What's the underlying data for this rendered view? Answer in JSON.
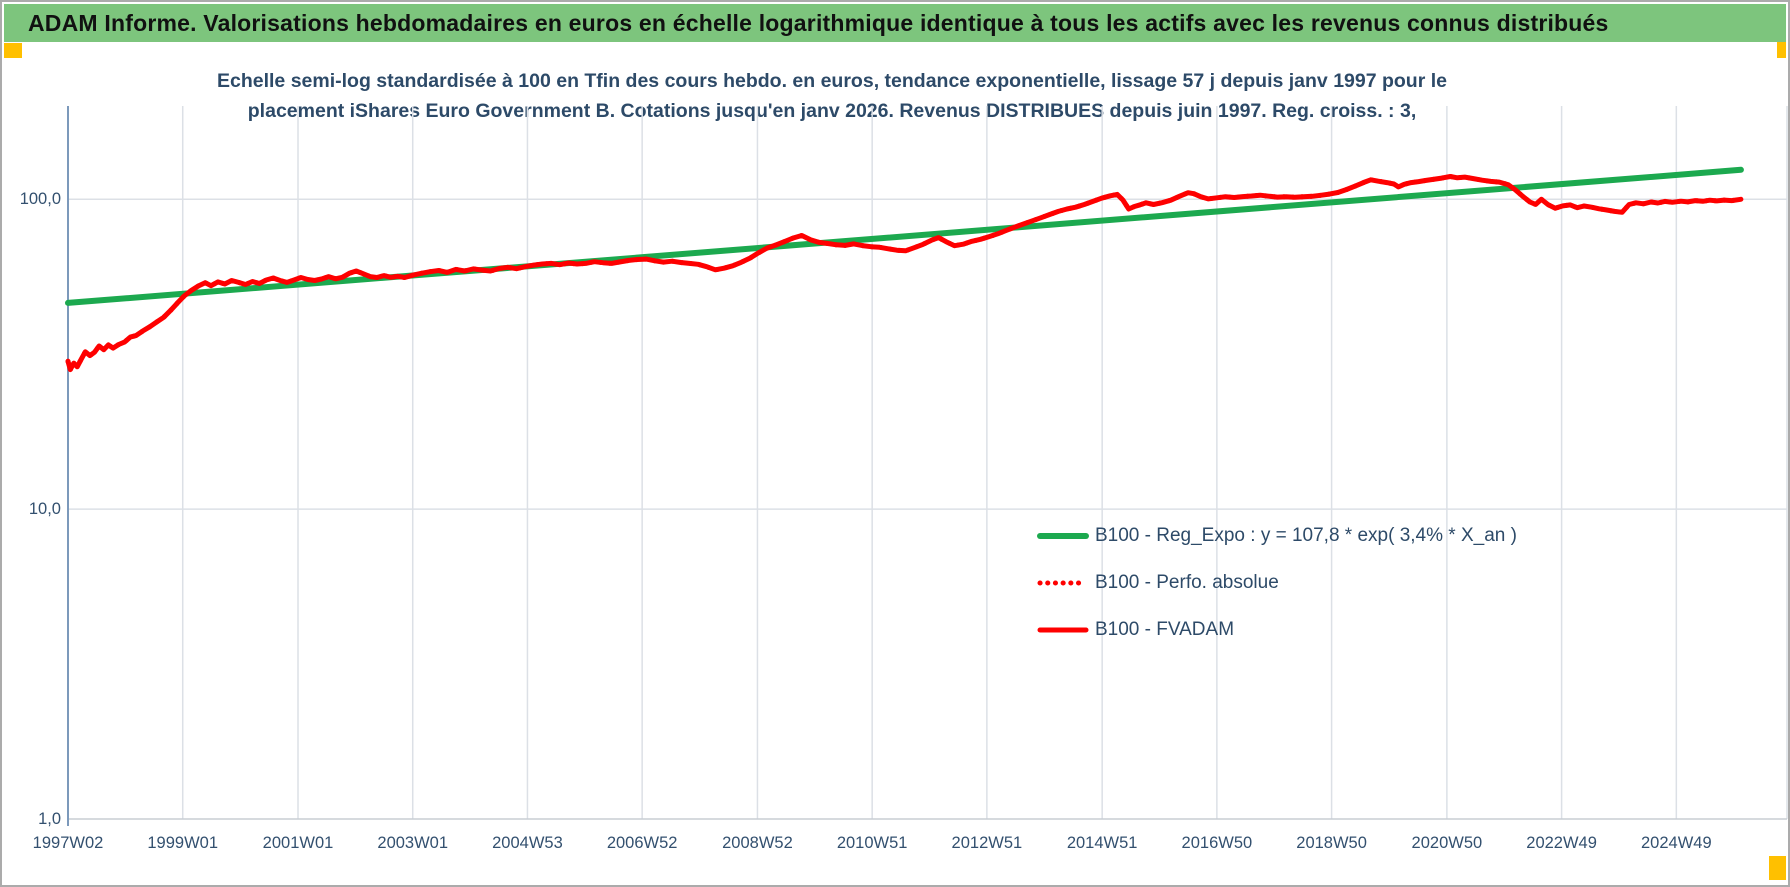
{
  "window": {
    "border_color": "#ababab",
    "background": "#ffffff"
  },
  "header": {
    "title": "ADAM Informe. Valorisations hebdomadaires en euros en échelle logarithmique identique à tous les actifs avec les revenus connus distribués",
    "background": "#7dc57d",
    "text_color": "#111111",
    "marker_color": "#ffc000"
  },
  "chart": {
    "title_line1": "Echelle semi-log standardisée à 100 en Tfin des cours hebdo. en euros, tendance exponentielle, lissage 57 j depuis janv 1997 pour le",
    "title_line2": "placement iShares Euro Government B. Cotations jusqu'en janv 2026. Revenus DISTRIBUES depuis juin 1997. Reg. croiss. : 3,",
    "title_color": "#2d4a68",
    "axis_label_color": "#33506f",
    "gridline_color": "#dce0e6",
    "axis_line_color": "#7c99bb",
    "baseline_color": "#c8cdd4"
  },
  "chart_data": {
    "type": "line",
    "y_scale": "log",
    "ylim": [
      1,
      200
    ],
    "x_range_years": [
      1997.02,
      2026.84
    ],
    "grid": true,
    "legend_position": "inside-right",
    "y_ticks": [
      {
        "value": 100,
        "label": "100,0"
      },
      {
        "value": 10,
        "label": "10,0"
      },
      {
        "value": 1,
        "label": "1,0"
      }
    ],
    "x_ticks": [
      {
        "year": 1997.02,
        "label": "1997W02"
      },
      {
        "year": 1999.01,
        "label": "1999W01"
      },
      {
        "year": 2001.01,
        "label": "2001W01"
      },
      {
        "year": 2003.0,
        "label": "2003W01"
      },
      {
        "year": 2004.99,
        "label": "2004W53"
      },
      {
        "year": 2006.98,
        "label": "2006W52"
      },
      {
        "year": 2008.98,
        "label": "2008W52"
      },
      {
        "year": 2010.97,
        "label": "2010W51"
      },
      {
        "year": 2012.96,
        "label": "2012W51"
      },
      {
        "year": 2014.96,
        "label": "2014W51"
      },
      {
        "year": 2016.95,
        "label": "2016W50"
      },
      {
        "year": 2018.94,
        "label": "2018W50"
      },
      {
        "year": 2020.94,
        "label": "2020W50"
      },
      {
        "year": 2022.93,
        "label": "2022W49"
      },
      {
        "year": 2024.92,
        "label": "2024W49"
      }
    ],
    "series": [
      {
        "name": "B100 - Reg_Expo : y = 107,8 * exp( 3,4% *  X_an )",
        "color": "#1ca94f",
        "style": "solid",
        "width": 6,
        "points": [
          [
            1997.02,
            46.3
          ],
          [
            2026.04,
            124.5
          ]
        ]
      },
      {
        "name": "B100 - Perfo. absolue",
        "color": "#fe0000",
        "style": "dotted",
        "width": 5,
        "points_same_as": "B100 - FVADAM"
      },
      {
        "name": "B100 - FVADAM",
        "color": "#fe0000",
        "style": "solid",
        "width": 5,
        "points": [
          [
            1997.02,
            30.0
          ],
          [
            1997.06,
            28.2
          ],
          [
            1997.12,
            29.6
          ],
          [
            1997.18,
            28.8
          ],
          [
            1997.25,
            30.5
          ],
          [
            1997.32,
            32.2
          ],
          [
            1997.4,
            31.3
          ],
          [
            1997.48,
            32.1
          ],
          [
            1997.56,
            33.6
          ],
          [
            1997.64,
            32.7
          ],
          [
            1997.72,
            33.9
          ],
          [
            1997.8,
            33.1
          ],
          [
            1997.9,
            34.0
          ],
          [
            1998.0,
            34.6
          ],
          [
            1998.1,
            35.9
          ],
          [
            1998.2,
            36.3
          ],
          [
            1998.32,
            37.6
          ],
          [
            1998.44,
            38.8
          ],
          [
            1998.56,
            40.2
          ],
          [
            1998.68,
            41.6
          ],
          [
            1998.8,
            43.8
          ],
          [
            1998.92,
            46.3
          ],
          [
            1999.04,
            48.8
          ],
          [
            1999.16,
            50.8
          ],
          [
            1999.28,
            52.5
          ],
          [
            1999.4,
            53.8
          ],
          [
            1999.5,
            52.6
          ],
          [
            1999.62,
            54.1
          ],
          [
            1999.74,
            53.3
          ],
          [
            1999.86,
            54.7
          ],
          [
            1999.98,
            53.9
          ],
          [
            2000.1,
            53.1
          ],
          [
            2000.22,
            54.3
          ],
          [
            2000.34,
            53.5
          ],
          [
            2000.46,
            54.9
          ],
          [
            2000.58,
            55.7
          ],
          [
            2000.7,
            54.7
          ],
          [
            2000.82,
            53.9
          ],
          [
            2000.94,
            54.9
          ],
          [
            2001.06,
            55.9
          ],
          [
            2001.18,
            55.1
          ],
          [
            2001.3,
            54.7
          ],
          [
            2001.42,
            55.3
          ],
          [
            2001.54,
            56.3
          ],
          [
            2001.66,
            55.4
          ],
          [
            2001.78,
            56.0
          ],
          [
            2001.9,
            57.7
          ],
          [
            2002.02,
            58.7
          ],
          [
            2002.14,
            57.5
          ],
          [
            2002.26,
            56.3
          ],
          [
            2002.38,
            55.9
          ],
          [
            2002.5,
            56.7
          ],
          [
            2002.62,
            56.0
          ],
          [
            2002.74,
            56.4
          ],
          [
            2002.86,
            55.9
          ],
          [
            2003.0,
            56.9
          ],
          [
            2003.15,
            57.7
          ],
          [
            2003.3,
            58.4
          ],
          [
            2003.45,
            58.9
          ],
          [
            2003.6,
            58.1
          ],
          [
            2003.75,
            59.4
          ],
          [
            2003.9,
            58.7
          ],
          [
            2004.05,
            59.6
          ],
          [
            2004.2,
            59.1
          ],
          [
            2004.35,
            58.7
          ],
          [
            2004.5,
            59.8
          ],
          [
            2004.65,
            60.3
          ],
          [
            2004.8,
            59.7
          ],
          [
            2004.95,
            60.6
          ],
          [
            2005.1,
            61.3
          ],
          [
            2005.25,
            61.8
          ],
          [
            2005.4,
            62.1
          ],
          [
            2005.55,
            61.5
          ],
          [
            2005.7,
            62.3
          ],
          [
            2005.85,
            61.8
          ],
          [
            2006.0,
            62.1
          ],
          [
            2006.15,
            62.9
          ],
          [
            2006.3,
            62.4
          ],
          [
            2006.45,
            62.1
          ],
          [
            2006.6,
            62.8
          ],
          [
            2006.75,
            63.5
          ],
          [
            2006.9,
            63.9
          ],
          [
            2007.05,
            64.1
          ],
          [
            2007.2,
            63.3
          ],
          [
            2007.35,
            62.7
          ],
          [
            2007.5,
            63.1
          ],
          [
            2007.65,
            62.5
          ],
          [
            2007.8,
            62.1
          ],
          [
            2007.95,
            61.7
          ],
          [
            2008.1,
            60.6
          ],
          [
            2008.25,
            59.2
          ],
          [
            2008.4,
            59.9
          ],
          [
            2008.55,
            61.0
          ],
          [
            2008.7,
            62.6
          ],
          [
            2008.85,
            64.6
          ],
          [
            2009.0,
            67.2
          ],
          [
            2009.15,
            69.6
          ],
          [
            2009.3,
            71.2
          ],
          [
            2009.45,
            73.0
          ],
          [
            2009.6,
            75.0
          ],
          [
            2009.75,
            76.4
          ],
          [
            2009.9,
            74.0
          ],
          [
            2010.05,
            72.6
          ],
          [
            2010.2,
            72.0
          ],
          [
            2010.35,
            71.3
          ],
          [
            2010.5,
            71.0
          ],
          [
            2010.65,
            71.8
          ],
          [
            2010.8,
            70.9
          ],
          [
            2010.95,
            70.3
          ],
          [
            2011.1,
            70.0
          ],
          [
            2011.25,
            69.2
          ],
          [
            2011.4,
            68.5
          ],
          [
            2011.55,
            68.2
          ],
          [
            2011.7,
            69.8
          ],
          [
            2011.85,
            71.5
          ],
          [
            2012.0,
            73.8
          ],
          [
            2012.12,
            75.2
          ],
          [
            2012.25,
            73.0
          ],
          [
            2012.4,
            70.8
          ],
          [
            2012.55,
            71.6
          ],
          [
            2012.7,
            73.2
          ],
          [
            2012.85,
            74.3
          ],
          [
            2013.0,
            75.8
          ],
          [
            2013.15,
            77.4
          ],
          [
            2013.3,
            79.4
          ],
          [
            2013.45,
            81.4
          ],
          [
            2013.6,
            83.3
          ],
          [
            2013.75,
            85.2
          ],
          [
            2013.9,
            87.2
          ],
          [
            2014.05,
            89.3
          ],
          [
            2014.2,
            91.4
          ],
          [
            2014.35,
            93.0
          ],
          [
            2014.5,
            94.3
          ],
          [
            2014.65,
            96.2
          ],
          [
            2014.8,
            98.4
          ],
          [
            2014.95,
            100.8
          ],
          [
            2015.1,
            102.6
          ],
          [
            2015.22,
            103.7
          ],
          [
            2015.32,
            99.5
          ],
          [
            2015.42,
            93.0
          ],
          [
            2015.52,
            94.8
          ],
          [
            2015.62,
            96.0
          ],
          [
            2015.72,
            97.4
          ],
          [
            2015.85,
            96.2
          ],
          [
            2016.0,
            97.5
          ],
          [
            2016.15,
            99.3
          ],
          [
            2016.3,
            102.2
          ],
          [
            2016.45,
            105.0
          ],
          [
            2016.55,
            104.2
          ],
          [
            2016.68,
            101.8
          ],
          [
            2016.8,
            100.3
          ],
          [
            2016.95,
            101.1
          ],
          [
            2017.1,
            101.9
          ],
          [
            2017.25,
            101.3
          ],
          [
            2017.4,
            102.0
          ],
          [
            2017.55,
            102.5
          ],
          [
            2017.7,
            103.1
          ],
          [
            2017.85,
            102.3
          ],
          [
            2018.0,
            101.6
          ],
          [
            2018.15,
            101.9
          ],
          [
            2018.3,
            101.5
          ],
          [
            2018.45,
            101.9
          ],
          [
            2018.6,
            102.2
          ],
          [
            2018.75,
            103.0
          ],
          [
            2018.9,
            103.9
          ],
          [
            2019.05,
            105.2
          ],
          [
            2019.2,
            107.5
          ],
          [
            2019.35,
            110.3
          ],
          [
            2019.5,
            113.4
          ],
          [
            2019.62,
            115.6
          ],
          [
            2019.75,
            114.4
          ],
          [
            2019.9,
            113.2
          ],
          [
            2020.02,
            112.0
          ],
          [
            2020.1,
            109.6
          ],
          [
            2020.2,
            111.8
          ],
          [
            2020.32,
            113.2
          ],
          [
            2020.45,
            114.0
          ],
          [
            2020.58,
            115.1
          ],
          [
            2020.7,
            115.9
          ],
          [
            2020.85,
            117.0
          ],
          [
            2021.0,
            118.4
          ],
          [
            2021.12,
            117.3
          ],
          [
            2021.25,
            117.9
          ],
          [
            2021.4,
            116.6
          ],
          [
            2021.55,
            115.2
          ],
          [
            2021.7,
            114.2
          ],
          [
            2021.85,
            113.6
          ],
          [
            2022.0,
            111.5
          ],
          [
            2022.12,
            107.5
          ],
          [
            2022.25,
            102.5
          ],
          [
            2022.38,
            98.0
          ],
          [
            2022.48,
            96.3
          ],
          [
            2022.58,
            100.0
          ],
          [
            2022.7,
            96.0
          ],
          [
            2022.82,
            93.6
          ],
          [
            2022.95,
            95.2
          ],
          [
            2023.08,
            95.9
          ],
          [
            2023.2,
            93.9
          ],
          [
            2023.32,
            95.1
          ],
          [
            2023.45,
            94.3
          ],
          [
            2023.58,
            93.2
          ],
          [
            2023.7,
            92.4
          ],
          [
            2023.85,
            91.4
          ],
          [
            2023.98,
            90.8
          ],
          [
            2024.1,
            96.2
          ],
          [
            2024.22,
            97.4
          ],
          [
            2024.35,
            96.7
          ],
          [
            2024.48,
            98.0
          ],
          [
            2024.6,
            97.3
          ],
          [
            2024.72,
            98.4
          ],
          [
            2024.85,
            97.8
          ],
          [
            2025.0,
            98.6
          ],
          [
            2025.12,
            98.1
          ],
          [
            2025.25,
            99.0
          ],
          [
            2025.38,
            98.5
          ],
          [
            2025.5,
            99.3
          ],
          [
            2025.62,
            98.8
          ],
          [
            2025.75,
            99.4
          ],
          [
            2025.88,
            99.0
          ],
          [
            2026.04,
            100.0
          ]
        ]
      }
    ]
  }
}
